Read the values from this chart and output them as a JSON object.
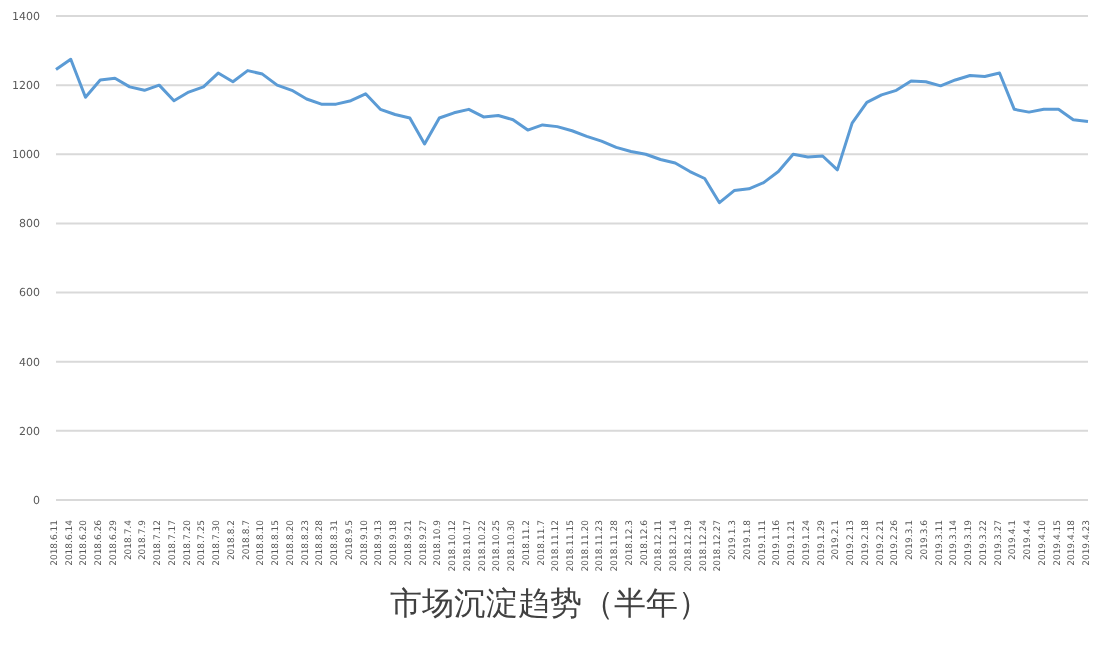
{
  "chart_data": {
    "type": "line",
    "title": "市场沉淀趋势（半年）",
    "categories": [
      "2018.6.11",
      "2018.6.14",
      "2018.6.20",
      "2018.6.26",
      "2018.6.29",
      "2018.7.4",
      "2018.7.9",
      "2018.7.12",
      "2018.7.17",
      "2018.7.20",
      "2018.7.25",
      "2018.7.30",
      "2018.8.2",
      "2018.8.7",
      "2018.8.10",
      "2018.8.15",
      "2018.8.20",
      "2018.8.23",
      "2018.8.28",
      "2018.8.31",
      "2018.9.5",
      "2018.9.10",
      "2018.9.13",
      "2018.9.18",
      "2018.9.21",
      "2018.9.27",
      "2018.10.9",
      "2018.10.12",
      "2018.10.17",
      "2018.10.22",
      "2018.10.25",
      "2018.10.30",
      "2018.11.2",
      "2018.11.7",
      "2018.11.12",
      "2018.11.15",
      "2018.11.20",
      "2018.11.23",
      "2018.11.28",
      "2018.12.3",
      "2018.12.6",
      "2018.12.11",
      "2018.12.14",
      "2018.12.19",
      "2018.12.24",
      "2018.12.27",
      "2019.1.3",
      "2019.1.8",
      "2019.1.11",
      "2019.1.16",
      "2019.1.21",
      "2019.1.24",
      "2019.1.29",
      "2019.2.1",
      "2019.2.13",
      "2019.2.18",
      "2019.2.21",
      "2019.2.26",
      "2019.3.1",
      "2019.3.6",
      "2019.3.11",
      "2019.3.14",
      "2019.3.19",
      "2019.3.22",
      "2019.3.27",
      "2019.4.1",
      "2019.4.4",
      "2019.4.10",
      "2019.4.15",
      "2019.4.18",
      "2019.4.23"
    ],
    "series": [
      {
        "color": "#5b9bd5",
        "values": [
          1245,
          1275,
          1165,
          1215,
          1220,
          1195,
          1185,
          1200,
          1155,
          1180,
          1195,
          1235,
          1210,
          1242,
          1232,
          1200,
          1185,
          1160,
          1145,
          1145,
          1155,
          1175,
          1130,
          1115,
          1105,
          1030,
          1105,
          1120,
          1130,
          1108,
          1112,
          1100,
          1070,
          1085,
          1080,
          1068,
          1052,
          1038,
          1020,
          1008,
          1000,
          985,
          975,
          950,
          930,
          860,
          895,
          900,
          918,
          950,
          1000,
          992,
          995,
          955,
          1090,
          1150,
          1172,
          1185,
          1212,
          1210,
          1198,
          1215,
          1228,
          1225,
          1235,
          1130,
          1122,
          1130,
          1130,
          1100,
          1095
        ]
      }
    ],
    "ylim": [
      0,
      1400
    ],
    "yticks": [
      0,
      200,
      400,
      600,
      800,
      1000,
      1200,
      1400
    ],
    "grid": "y",
    "marker": "none",
    "line_style": "solid",
    "legend": false
  }
}
